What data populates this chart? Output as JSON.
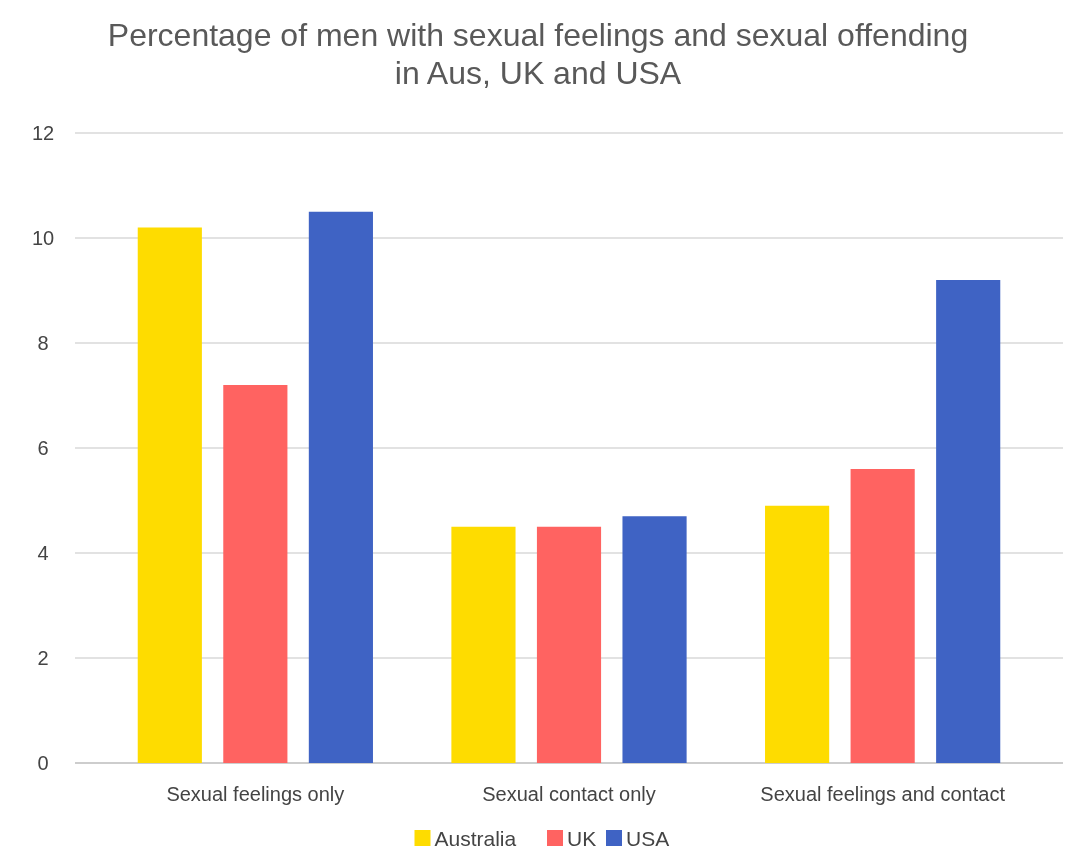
{
  "chart_data": {
    "type": "bar",
    "title": "Percentage of men with sexual feelings and sexual offending in Aus, UK and USA",
    "categories": [
      "Sexual feelings only",
      "Sexual contact only",
      "Sexual feelings and contact"
    ],
    "series": [
      {
        "name": "Australia",
        "color": "#fedc00",
        "values": [
          10.2,
          4.5,
          4.9
        ]
      },
      {
        "name": "UK",
        "color": "#ff6361",
        "values": [
          7.2,
          4.5,
          5.6
        ]
      },
      {
        "name": "USA",
        "color": "#3f63c4",
        "values": [
          10.5,
          4.7,
          9.2
        ]
      }
    ],
    "ylim": [
      0,
      12
    ],
    "yticks": [
      0,
      2,
      4,
      6,
      8,
      10,
      12
    ],
    "grid": "y",
    "legend": "bottom"
  }
}
